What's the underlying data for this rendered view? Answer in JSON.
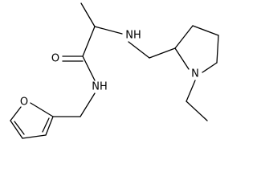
{
  "atoms": [
    {
      "label": "O"
    },
    {
      "label": "NH"
    },
    {
      "label": "NH"
    },
    {
      "label": "O"
    },
    {
      "label": "N"
    }
  ]
}
